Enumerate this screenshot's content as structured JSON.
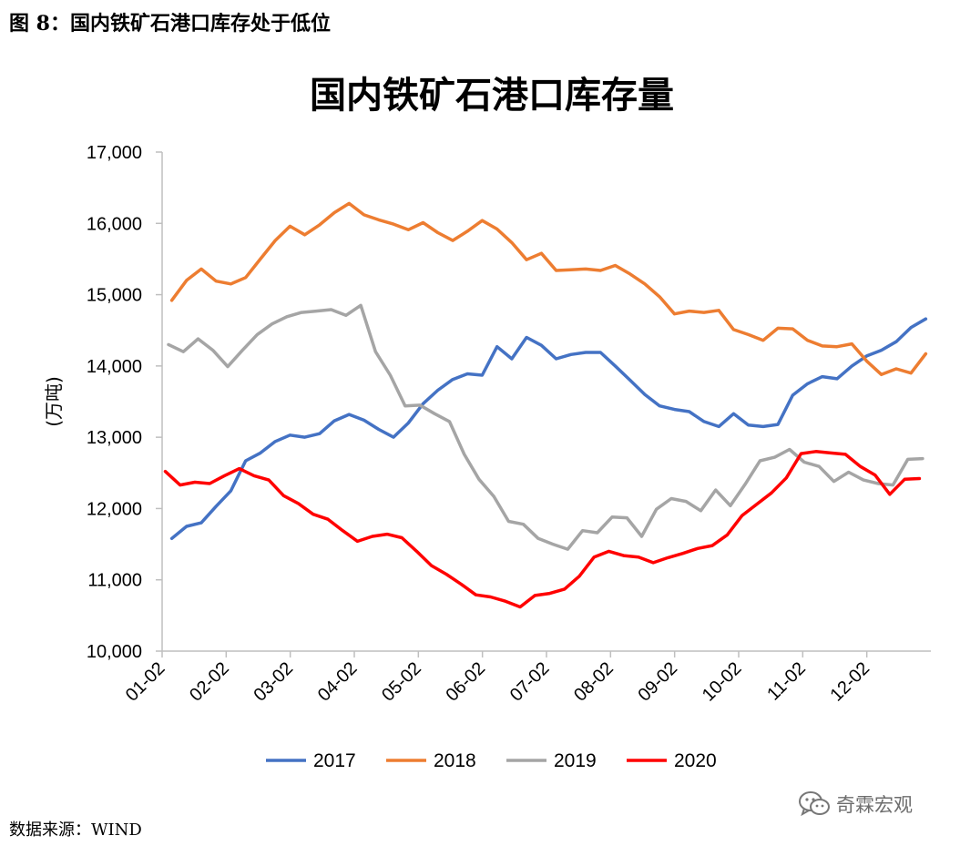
{
  "figure_caption": "图 8：国内铁矿石港口库存处于低位",
  "source_note": "数据来源：WIND",
  "watermark": {
    "icon": "wechat-icon",
    "text": "奇霖宏观"
  },
  "chart_data": {
    "type": "line",
    "title": "国内铁矿石港口库存量",
    "xlabel": "",
    "ylabel": "(万吨)",
    "ylim": [
      10000,
      17000
    ],
    "yticks": [
      10000,
      11000,
      12000,
      13000,
      14000,
      15000,
      16000,
      17000
    ],
    "ytick_labels": [
      "10,000",
      "11,000",
      "12,000",
      "13,000",
      "14,000",
      "15,000",
      "16,000",
      "17,000"
    ],
    "xlim": [
      0,
      12
    ],
    "xticks": [
      0,
      1,
      2,
      3,
      4,
      5,
      6,
      7,
      8,
      9,
      10,
      11
    ],
    "xtick_labels": [
      "01-02",
      "02-02",
      "03-02",
      "04-02",
      "05-02",
      "06-02",
      "07-02",
      "08-02",
      "09-02",
      "10-02",
      "11-02",
      "12-02"
    ],
    "grid": false,
    "legend_position": "bottom",
    "series": [
      {
        "name": "2017",
        "color": "#4472C4",
        "start": 0.15,
        "step": 0.2308,
        "values": [
          11580,
          11750,
          11800,
          12030,
          12250,
          12670,
          12780,
          12940,
          13030,
          13000,
          13050,
          13230,
          13320,
          13240,
          13110,
          13000,
          13200,
          13470,
          13660,
          13810,
          13890,
          13870,
          14270,
          14100,
          14400,
          14290,
          14100,
          14160,
          14190,
          14190,
          14000,
          13800,
          13600,
          13440,
          13390,
          13360,
          13220,
          13150,
          13330,
          13170,
          13150,
          13180,
          13590,
          13750,
          13850,
          13820,
          14000,
          14140,
          14220,
          14340,
          14540,
          14660
        ]
      },
      {
        "name": "2018",
        "color": "#ED7D31",
        "start": 0.15,
        "step": 0.2308,
        "values": [
          14920,
          15200,
          15360,
          15190,
          15150,
          15240,
          15500,
          15760,
          15960,
          15840,
          15980,
          16150,
          16280,
          16120,
          16050,
          15990,
          15910,
          16010,
          15870,
          15760,
          15890,
          16040,
          15920,
          15730,
          15490,
          15580,
          15340,
          15350,
          15360,
          15340,
          15410,
          15290,
          15150,
          14970,
          14730,
          14770,
          14750,
          14780,
          14510,
          14440,
          14360,
          14530,
          14520,
          14360,
          14280,
          14270,
          14310,
          14070,
          13880,
          13960,
          13900,
          14170
        ]
      },
      {
        "name": "2019",
        "color": "#A5A5A5",
        "start": 0.1,
        "step": 0.2308,
        "values": [
          14300,
          14200,
          14380,
          14220,
          13990,
          14220,
          14440,
          14590,
          14690,
          14750,
          14770,
          14790,
          14710,
          14850,
          14200,
          13870,
          13440,
          13450,
          13330,
          13220,
          12760,
          12410,
          12170,
          11820,
          11780,
          11580,
          11500,
          11430,
          11690,
          11660,
          11880,
          11870,
          11610,
          11990,
          12140,
          12100,
          11970,
          12260,
          12040,
          12340,
          12670,
          12720,
          12830,
          12650,
          12590,
          12380,
          12510,
          12400,
          12350,
          12330,
          12690,
          12700
        ]
      },
      {
        "name": "2020",
        "color": "#FF0000",
        "start": 0.05,
        "step": 0.2308,
        "values": [
          12520,
          12330,
          12370,
          12350,
          12460,
          12560,
          12460,
          12400,
          12180,
          12070,
          11920,
          11850,
          11690,
          11540,
          11610,
          11640,
          11590,
          11400,
          11200,
          11080,
          10940,
          10790,
          10760,
          10700,
          10620,
          10780,
          10810,
          10870,
          11050,
          11320,
          11400,
          11340,
          11320,
          11240,
          11310,
          11370,
          11440,
          11480,
          11630,
          11900,
          12060,
          12220,
          12430,
          12770,
          12800,
          12780,
          12760,
          12590,
          12470,
          12200,
          12410,
          12420
        ]
      }
    ]
  }
}
